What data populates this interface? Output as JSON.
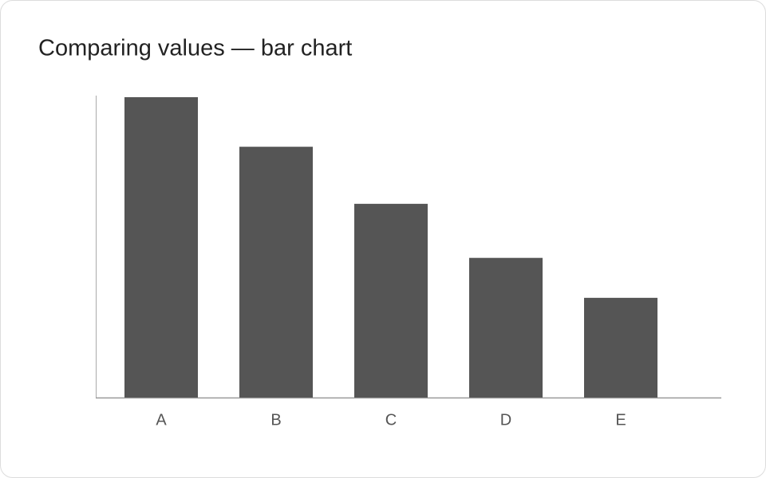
{
  "chart_data": {
    "type": "bar",
    "title": "Comparing values — bar chart",
    "categories": [
      "A",
      "B",
      "C",
      "D",
      "E"
    ],
    "values": [
      100,
      83.5,
      64.5,
      46.5,
      33.2
    ],
    "color": "#555555",
    "ylim": [
      0,
      100
    ]
  }
}
